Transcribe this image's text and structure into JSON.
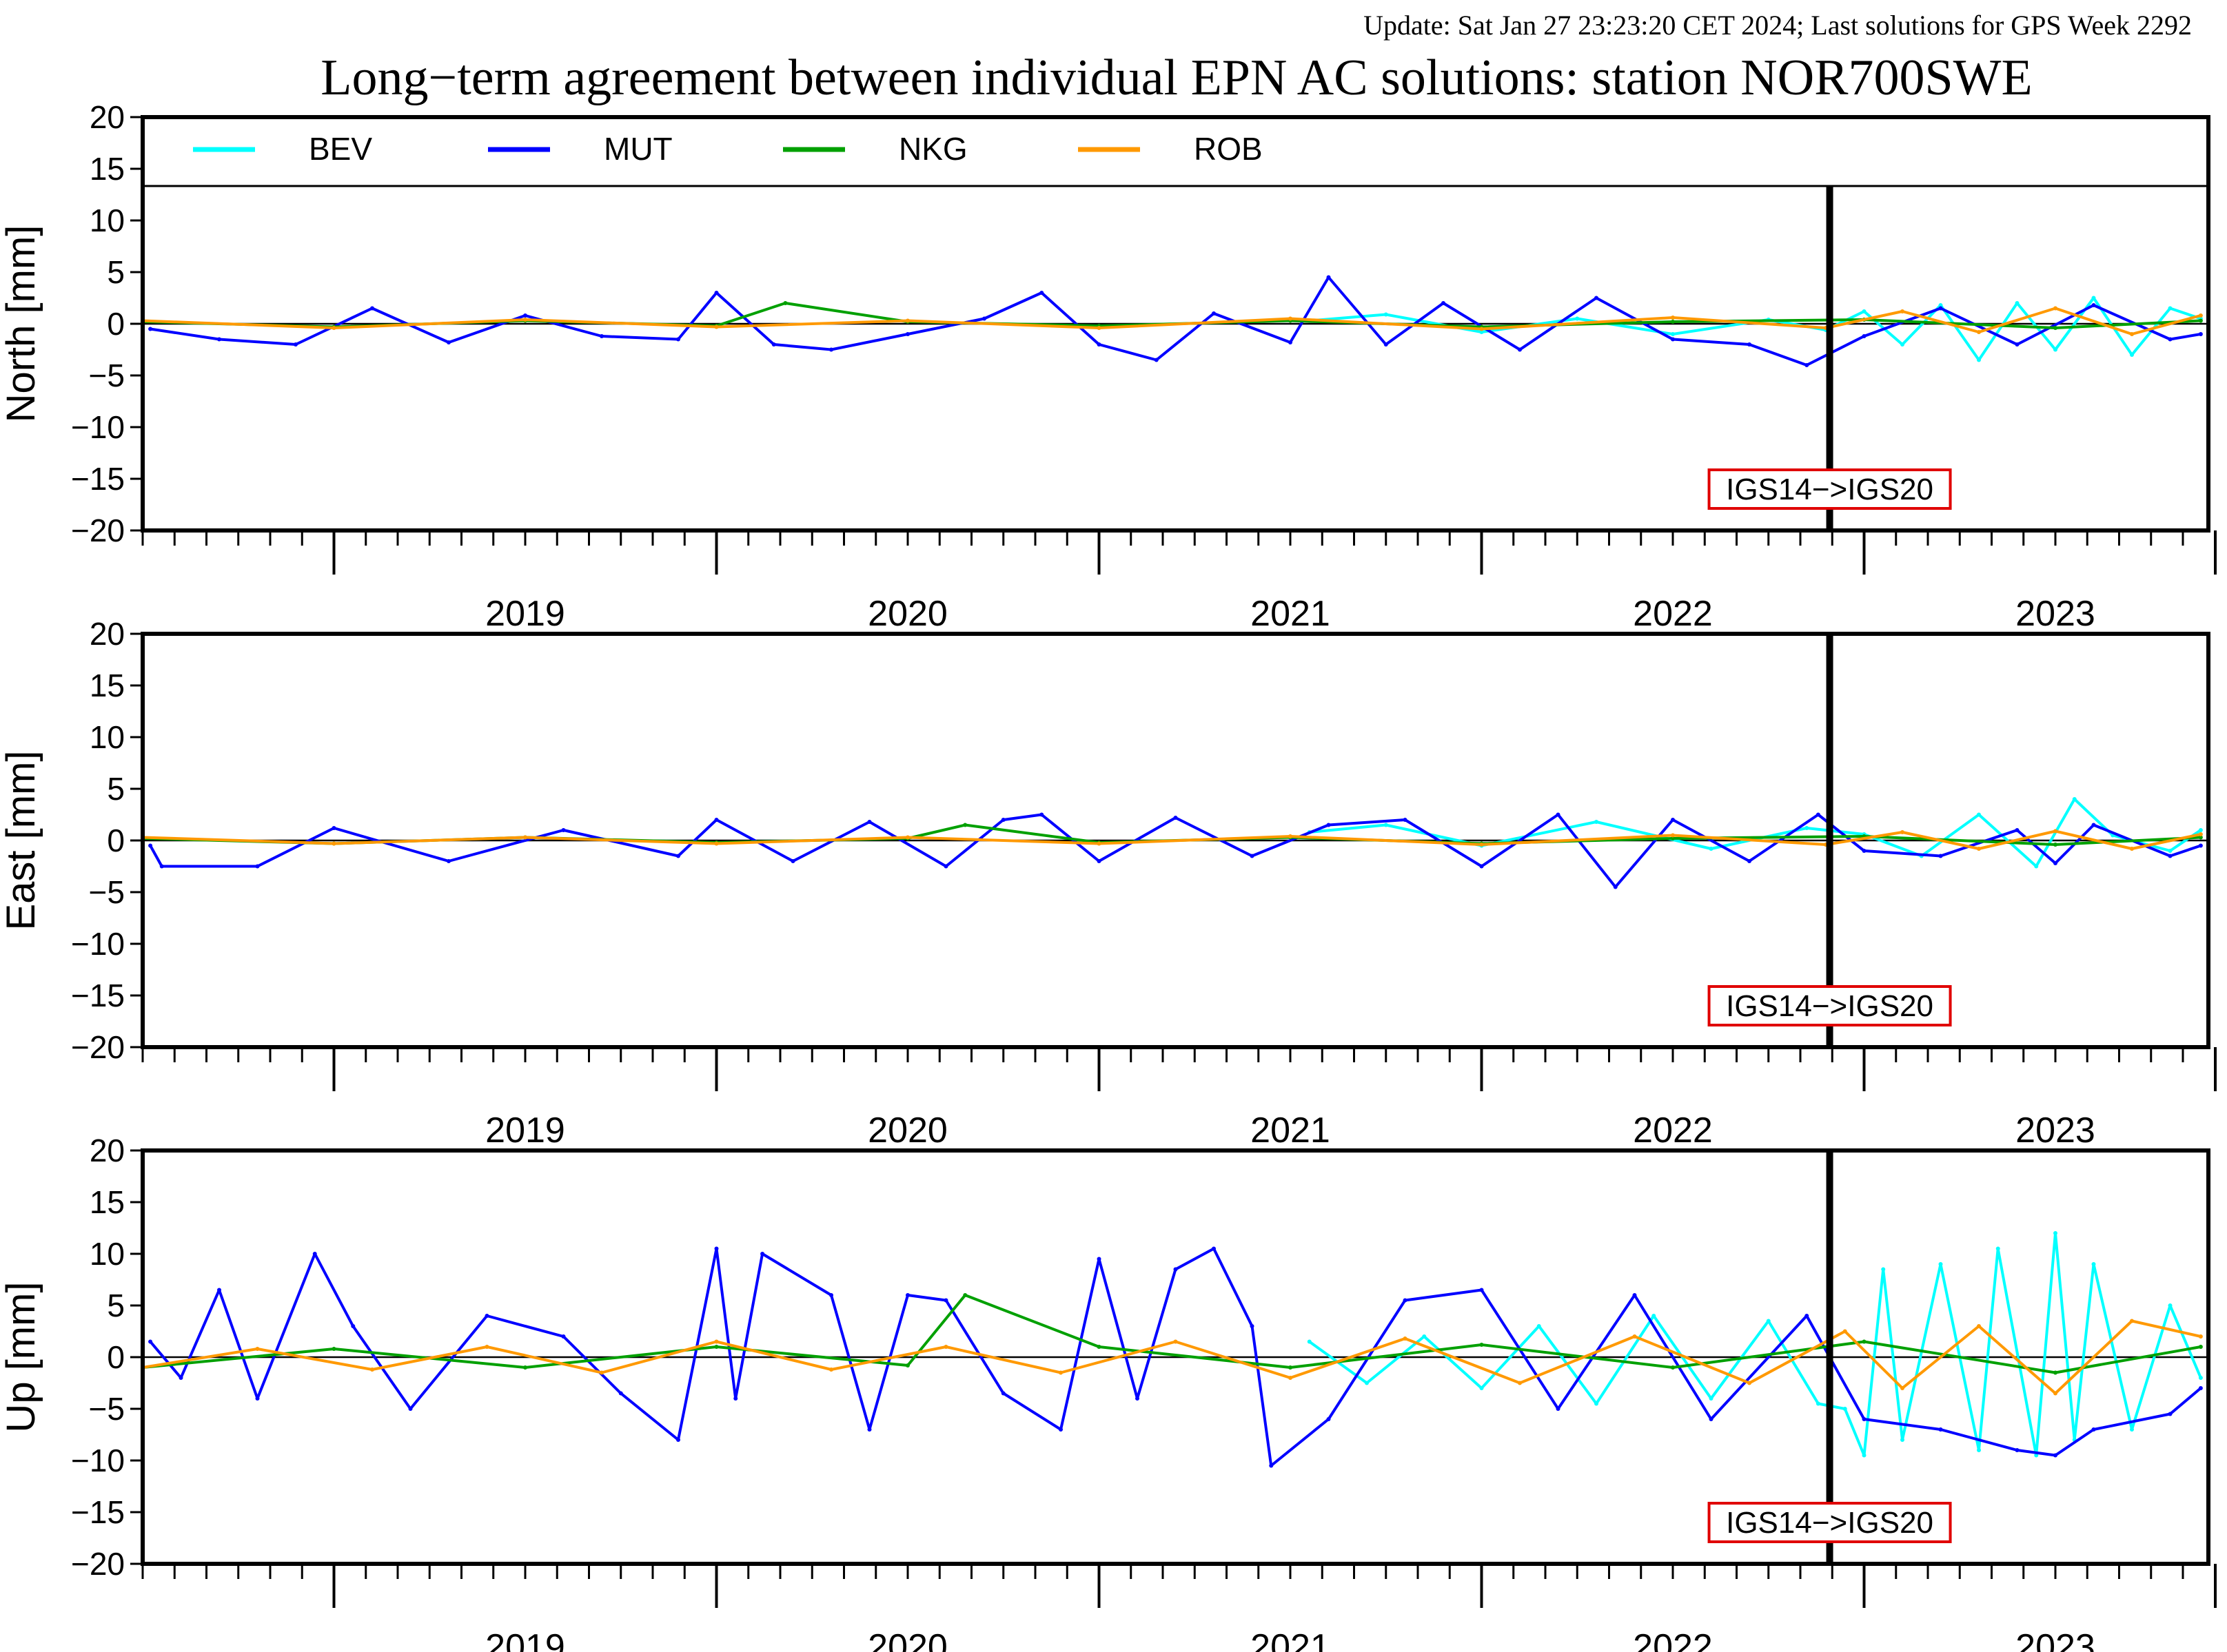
{
  "update_line": "Update: Sat Jan 27 23:23:20 CET 2024; Last solutions for GPS Week 2292",
  "main_title": "Long−term agreement between individual EPN AC solutions: station NOR700SWE",
  "colors": {
    "update_text": "#8b1a1a",
    "BEV": "#00ffff",
    "MUT": "#0000ff",
    "NKG": "#00a000",
    "ROB": "#ff9900",
    "annotation_border": "#e00000",
    "axis": "#000000"
  },
  "chart_data": [
    {
      "type": "line",
      "panel": "north",
      "ylabel": "North [mm]",
      "ylim": [
        -20,
        20
      ],
      "yticks": [
        "20",
        "15",
        "10",
        "5",
        "0",
        "−5",
        "−10",
        "−15",
        "−20"
      ],
      "xlim": [
        2018.5,
        2023.9
      ],
      "xticks": [
        "2019",
        "2020",
        "2021",
        "2022",
        "2023"
      ],
      "legend": {
        "placement": "top",
        "entries": [
          "BEV",
          "MUT",
          "NKG",
          "ROB"
        ]
      },
      "frame_change": {
        "x": 2022.91,
        "label": "IGS14−>IGS20"
      },
      "series": [
        {
          "name": "BEV",
          "x": [
            2021.55,
            2021.75,
            2022.0,
            2022.25,
            2022.5,
            2022.75,
            2022.9,
            2023.0,
            2023.1,
            2023.2,
            2023.3,
            2023.4,
            2023.5,
            2023.6,
            2023.7,
            2023.8,
            2023.88
          ],
          "values": [
            0.3,
            0.9,
            -0.8,
            0.5,
            -1.0,
            0.4,
            -0.6,
            1.2,
            -2.0,
            1.8,
            -3.5,
            2.0,
            -2.5,
            2.5,
            -3.0,
            1.5,
            0.5
          ]
        },
        {
          "name": "MUT",
          "x": [
            2018.52,
            2018.7,
            2018.9,
            2019.1,
            2019.3,
            2019.5,
            2019.7,
            2019.9,
            2020.0,
            2020.15,
            2020.3,
            2020.5,
            2020.7,
            2020.85,
            2021.0,
            2021.15,
            2021.3,
            2021.5,
            2021.6,
            2021.75,
            2021.9,
            2022.1,
            2022.3,
            2022.5,
            2022.7,
            2022.85,
            2023.0,
            2023.2,
            2023.4,
            2023.6,
            2023.8,
            2023.88
          ],
          "values": [
            -0.5,
            -1.5,
            -2.0,
            1.5,
            -1.8,
            0.8,
            -1.2,
            -1.5,
            3.0,
            -2.0,
            -2.5,
            -1.0,
            0.5,
            3.0,
            -2.0,
            -3.5,
            1.0,
            -1.8,
            4.5,
            -2.0,
            2.0,
            -2.5,
            2.5,
            -1.5,
            -2.0,
            -4.0,
            -1.2,
            1.5,
            -2.0,
            1.8,
            -1.5,
            -1.0
          ]
        },
        {
          "name": "NKG",
          "x": [
            2018.5,
            2019.0,
            2019.5,
            2020.0,
            2020.18,
            2020.5,
            2021.0,
            2021.5,
            2022.0,
            2022.5,
            2023.0,
            2023.5,
            2023.88
          ],
          "values": [
            0.2,
            -0.3,
            0.3,
            -0.2,
            2.0,
            0.2,
            -0.2,
            0.3,
            -0.3,
            0.2,
            0.4,
            -0.4,
            0.3
          ]
        },
        {
          "name": "ROB",
          "x": [
            2018.5,
            2019.0,
            2019.5,
            2020.0,
            2020.5,
            2021.0,
            2021.5,
            2022.0,
            2022.5,
            2022.9,
            2023.1,
            2023.3,
            2023.5,
            2023.7,
            2023.88
          ],
          "values": [
            0.3,
            -0.4,
            0.4,
            -0.3,
            0.3,
            -0.4,
            0.5,
            -0.5,
            0.6,
            -0.4,
            1.2,
            -0.8,
            1.5,
            -1.0,
            0.8
          ]
        }
      ]
    },
    {
      "type": "line",
      "panel": "east",
      "ylabel": "East [mm]",
      "ylim": [
        -20,
        20
      ],
      "yticks": [
        "20",
        "15",
        "10",
        "5",
        "0",
        "−5",
        "−10",
        "−15",
        "−20"
      ],
      "xlim": [
        2018.5,
        2023.9
      ],
      "xticks": [
        "2019",
        "2020",
        "2021",
        "2022",
        "2023"
      ],
      "frame_change": {
        "x": 2022.91,
        "label": "IGS14−>IGS20"
      },
      "series": [
        {
          "name": "BEV",
          "x": [
            2021.55,
            2021.75,
            2022.0,
            2022.3,
            2022.6,
            2022.85,
            2023.0,
            2023.15,
            2023.3,
            2023.45,
            2023.55,
            2023.65,
            2023.8,
            2023.88
          ],
          "values": [
            0.8,
            1.5,
            -0.5,
            1.8,
            -0.8,
            1.2,
            0.6,
            -1.5,
            2.5,
            -2.5,
            4.0,
            0.5,
            -1.0,
            1.0
          ]
        },
        {
          "name": "MUT",
          "x": [
            2018.52,
            2018.55,
            2018.8,
            2019.0,
            2019.3,
            2019.6,
            2019.9,
            2020.0,
            2020.2,
            2020.4,
            2020.6,
            2020.75,
            2020.85,
            2021.0,
            2021.2,
            2021.4,
            2021.6,
            2021.8,
            2022.0,
            2022.2,
            2022.35,
            2022.5,
            2022.7,
            2022.88,
            2023.0,
            2023.2,
            2023.4,
            2023.5,
            2023.6,
            2023.8,
            2023.88
          ],
          "values": [
            -0.5,
            -2.5,
            -2.5,
            1.2,
            -2.0,
            1.0,
            -1.5,
            2.0,
            -2.0,
            1.8,
            -2.5,
            2.0,
            2.5,
            -2.0,
            2.2,
            -1.5,
            1.5,
            2.0,
            -2.5,
            2.5,
            -4.5,
            2.0,
            -2.0,
            2.5,
            -1.0,
            -1.5,
            1.0,
            -2.2,
            1.5,
            -1.5,
            -0.5
          ]
        },
        {
          "name": "NKG",
          "x": [
            2018.5,
            2019.0,
            2019.5,
            2020.0,
            2020.5,
            2020.65,
            2021.0,
            2021.5,
            2022.0,
            2022.5,
            2023.0,
            2023.5,
            2023.88
          ],
          "values": [
            0.2,
            -0.3,
            0.3,
            -0.2,
            0.2,
            1.5,
            -0.2,
            0.3,
            -0.3,
            0.2,
            0.4,
            -0.4,
            0.3
          ]
        },
        {
          "name": "ROB",
          "x": [
            2018.5,
            2019.0,
            2019.5,
            2020.0,
            2020.5,
            2021.0,
            2021.5,
            2022.0,
            2022.5,
            2022.9,
            2023.1,
            2023.3,
            2023.5,
            2023.7,
            2023.88
          ],
          "values": [
            0.3,
            -0.3,
            0.3,
            -0.3,
            0.3,
            -0.3,
            0.4,
            -0.4,
            0.5,
            -0.4,
            0.8,
            -0.8,
            0.9,
            -0.8,
            0.6
          ]
        }
      ]
    },
    {
      "type": "line",
      "panel": "up",
      "ylabel": "Up [mm]",
      "ylim": [
        -20,
        20
      ],
      "yticks": [
        "20",
        "15",
        "10",
        "5",
        "0",
        "−5",
        "−10",
        "−15",
        "−20"
      ],
      "xlim": [
        2018.5,
        2023.9
      ],
      "xticks": [
        "2019",
        "2020",
        "2021",
        "2022",
        "2023"
      ],
      "frame_change": {
        "x": 2022.91,
        "label": "IGS14−>IGS20"
      },
      "series": [
        {
          "name": "BEV",
          "x": [
            2021.55,
            2021.7,
            2021.85,
            2022.0,
            2022.15,
            2022.3,
            2022.45,
            2022.6,
            2022.75,
            2022.88,
            2022.95,
            2023.0,
            2023.05,
            2023.1,
            2023.2,
            2023.3,
            2023.35,
            2023.45,
            2023.5,
            2023.55,
            2023.6,
            2023.7,
            2023.8,
            2023.88
          ],
          "values": [
            1.5,
            -2.5,
            2.0,
            -3.0,
            3.0,
            -4.5,
            4.0,
            -4.0,
            3.5,
            -4.5,
            -5.0,
            -9.5,
            8.5,
            -8.0,
            9.0,
            -9.0,
            10.5,
            -9.5,
            12.0,
            -8.0,
            9.0,
            -7.0,
            5.0,
            -2.0
          ]
        },
        {
          "name": "MUT",
          "x": [
            2018.52,
            2018.6,
            2018.7,
            2018.8,
            2018.95,
            2019.05,
            2019.2,
            2019.4,
            2019.6,
            2019.75,
            2019.9,
            2020.0,
            2020.05,
            2020.12,
            2020.3,
            2020.4,
            2020.5,
            2020.6,
            2020.75,
            2020.9,
            2021.0,
            2021.1,
            2021.2,
            2021.3,
            2021.4,
            2021.45,
            2021.6,
            2021.8,
            2022.0,
            2022.2,
            2022.4,
            2022.6,
            2022.85,
            2023.0,
            2023.2,
            2023.4,
            2023.5,
            2023.6,
            2023.8,
            2023.88
          ],
          "values": [
            1.5,
            -2.0,
            6.5,
            -4.0,
            10.0,
            3.0,
            -5.0,
            4.0,
            2.0,
            -3.5,
            -8.0,
            10.5,
            -4.0,
            10.0,
            6.0,
            -7.0,
            6.0,
            5.5,
            -3.5,
            -7.0,
            9.5,
            -4.0,
            8.5,
            10.5,
            3.0,
            -10.5,
            -6.0,
            5.5,
            6.5,
            -5.0,
            6.0,
            -6.0,
            4.0,
            -6.0,
            -7.0,
            -9.0,
            -9.5,
            -7.0,
            -5.5,
            -3.0
          ]
        },
        {
          "name": "NKG",
          "x": [
            2018.5,
            2019.0,
            2019.5,
            2020.0,
            2020.5,
            2020.65,
            2021.0,
            2021.5,
            2022.0,
            2022.5,
            2023.0,
            2023.5,
            2023.88
          ],
          "values": [
            -1.0,
            0.8,
            -1.0,
            1.0,
            -0.8,
            6.0,
            1.0,
            -1.0,
            1.2,
            -1.0,
            1.5,
            -1.5,
            1.0
          ]
        },
        {
          "name": "ROB",
          "x": [
            2018.5,
            2018.8,
            2019.1,
            2019.4,
            2019.7,
            2020.0,
            2020.3,
            2020.6,
            2020.9,
            2021.2,
            2021.5,
            2021.8,
            2022.1,
            2022.4,
            2022.7,
            2022.95,
            2023.1,
            2023.3,
            2023.5,
            2023.7,
            2023.88
          ],
          "values": [
            -1.0,
            0.8,
            -1.2,
            1.0,
            -1.5,
            1.5,
            -1.2,
            1.0,
            -1.5,
            1.5,
            -2.0,
            1.8,
            -2.5,
            2.0,
            -2.5,
            2.5,
            -3.0,
            3.0,
            -3.5,
            3.5,
            2.0
          ]
        }
      ]
    }
  ]
}
